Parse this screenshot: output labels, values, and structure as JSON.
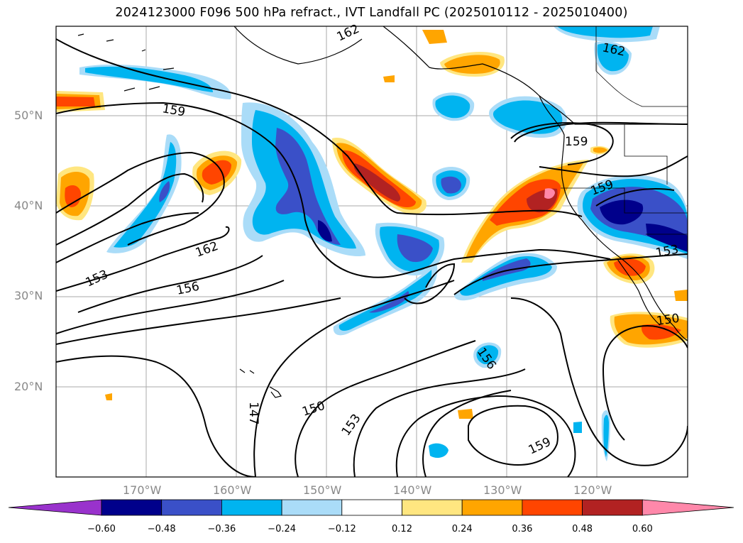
{
  "title": "2024123000 F096 500 hPa refract., IVT Landfall PC (2025010112 - 2025010400)",
  "lat_labels": [
    "50°N",
    "40°N",
    "30°N",
    "20°N"
  ],
  "lon_labels": [
    "170°W",
    "160°W",
    "150°W",
    "140°W",
    "130°W",
    "120°W"
  ],
  "contour_labels": [
    "162",
    "162",
    "159",
    "159",
    "159",
    "162",
    "153",
    "156",
    "153",
    "150",
    "156",
    "147",
    "150",
    "153",
    "159"
  ],
  "colorbar": {
    "ticks": [
      "−0.60",
      "−0.48",
      "−0.36",
      "−0.24",
      "−0.12",
      "0.12",
      "0.24",
      "0.36",
      "0.48",
      "0.60"
    ],
    "colors": [
      "#9932cc",
      "#00008b",
      "#3a50c8",
      "#00b4f0",
      "#aadcf8",
      "#ffffff",
      "#ffe680",
      "#ffa500",
      "#ff4500",
      "#b22222",
      "#ff88aa"
    ]
  },
  "colors": {
    "strong_pos": "#b22222",
    "pos": "#ff4500",
    "weak_pos": "#ffa500",
    "faint_pos": "#ffe680",
    "max_pos": "#ff88aa",
    "faint_neg": "#aadcf8",
    "weak_neg": "#00b4f0",
    "neg": "#3a50c8",
    "strong_neg": "#00008b"
  }
}
